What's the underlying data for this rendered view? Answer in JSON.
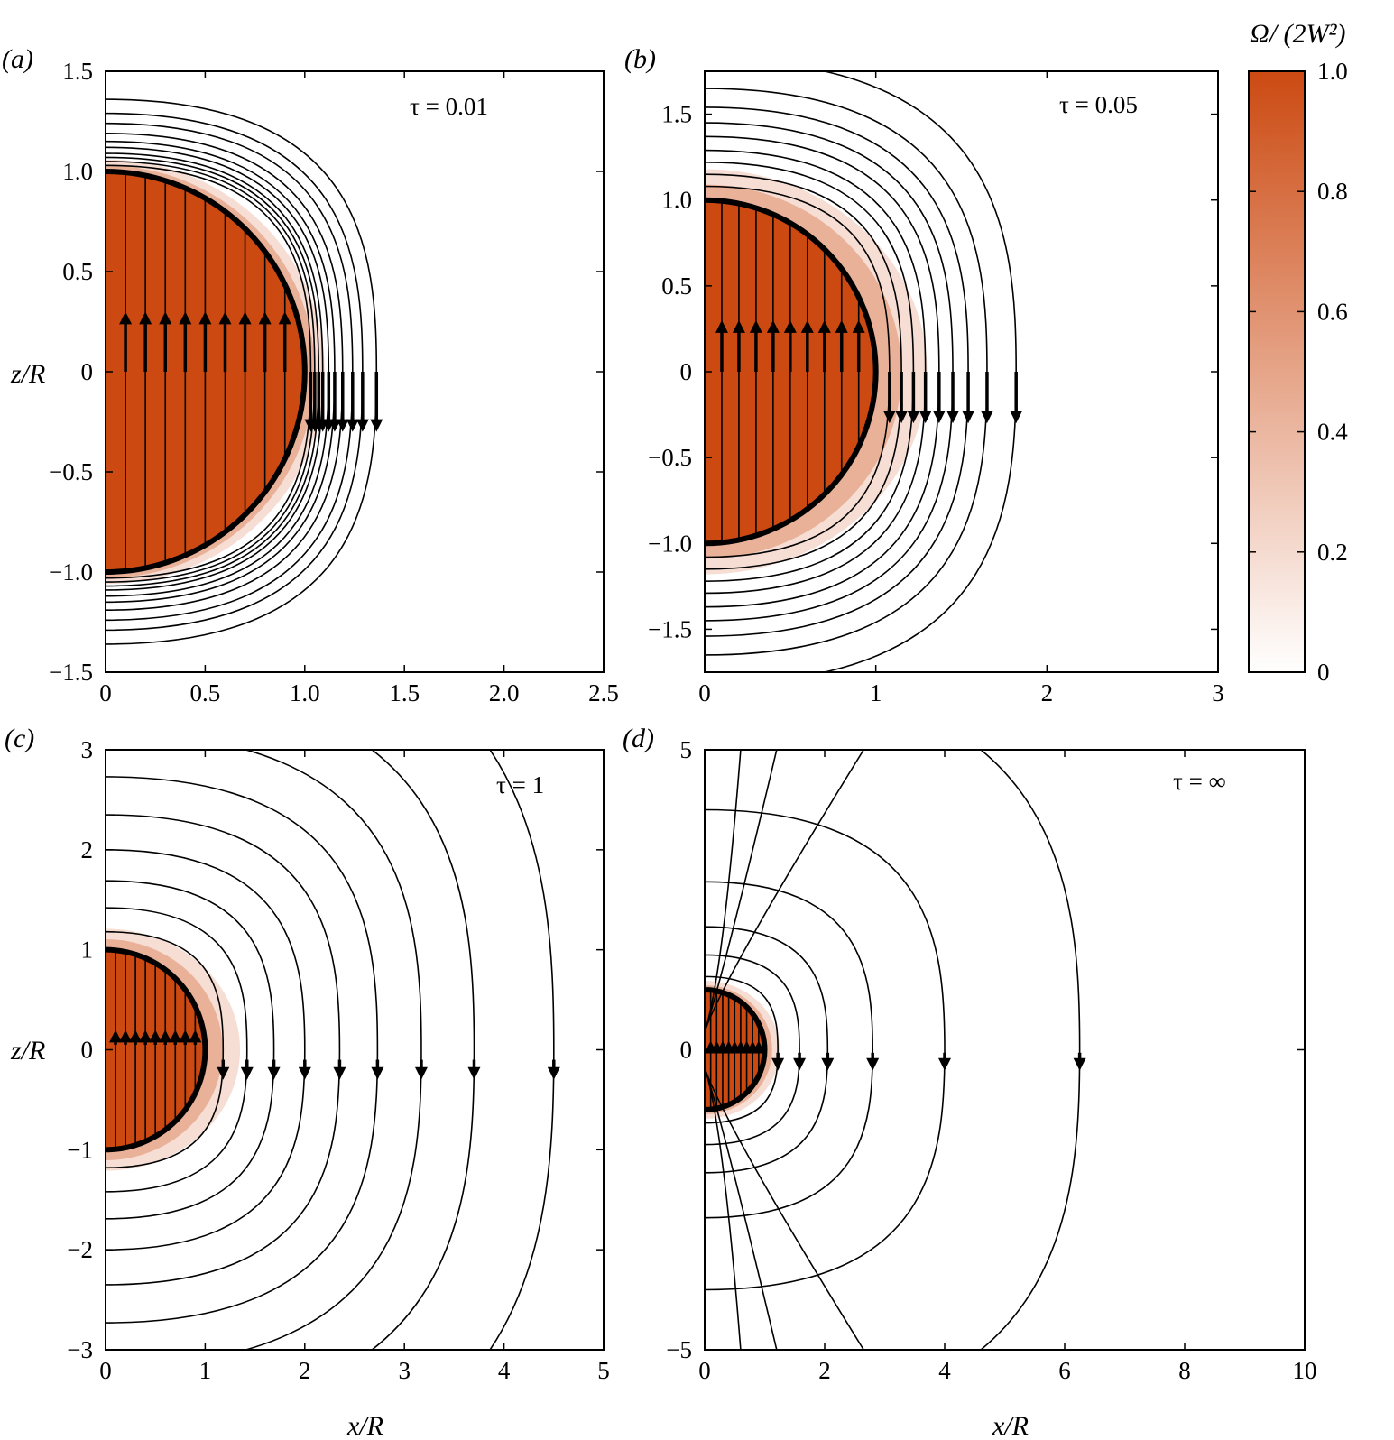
{
  "colorbar": {
    "title": "Ω/ (2W²)",
    "min": 0,
    "max": 1,
    "ticks": [
      "0",
      "0.2",
      "0.4",
      "0.6",
      "0.8",
      "1.0"
    ],
    "tick_values": [
      0,
      0.2,
      0.4,
      0.6,
      0.8,
      1.0
    ],
    "color_high": "#cc4a12",
    "color_low": "#ffffff"
  },
  "line_color": "#000000",
  "chart_data": [
    {
      "panel": "(a)",
      "type": "streamlines over filled contour",
      "annotation": "τ = 0.01",
      "tau": 0.01,
      "xlabel": "",
      "ylabel": "z/R",
      "xlim": [
        0,
        2.5
      ],
      "ylim": [
        -1.5,
        1.5
      ],
      "xticks": [
        0,
        0.5,
        1.0,
        1.5,
        2.0,
        2.5
      ],
      "xtick_labels": [
        "0",
        "0.5",
        "1.0",
        "1.5",
        "2.0",
        "2.5"
      ],
      "yticks": [
        -1.5,
        -1.0,
        -0.5,
        0,
        0.5,
        1.0,
        1.5
      ],
      "ytick_labels": [
        "−1.5",
        "−1.0",
        "−0.5",
        "0",
        "0.5",
        "1.0",
        "1.5"
      ],
      "sphere_radius": 1.0,
      "streamline_inner_x": [
        0.1,
        0.2,
        0.3,
        0.4,
        0.5,
        0.6,
        0.7,
        0.8,
        0.9
      ],
      "streamline_outer_x": [
        1.03,
        1.05,
        1.07,
        1.09,
        1.12,
        1.15,
        1.19,
        1.24,
        1.29,
        1.36
      ],
      "up_arrow_y": [
        0,
        0.3
      ],
      "down_arrow_y": [
        0,
        -0.3
      ]
    },
    {
      "panel": "(b)",
      "type": "streamlines over filled contour",
      "annotation": "τ = 0.05",
      "tau": 0.05,
      "xlabel": "",
      "ylabel": "",
      "xlim": [
        0,
        3
      ],
      "ylim": [
        -1.75,
        1.75
      ],
      "xticks": [
        0,
        1,
        2,
        3
      ],
      "xtick_labels": [
        "0",
        "1",
        "2",
        "3"
      ],
      "yticks": [
        -1.5,
        -1.0,
        -0.5,
        0,
        0.5,
        1.0,
        1.5
      ],
      "ytick_labels": [
        "−1.5",
        "−1.0",
        "−0.5",
        "0",
        "0.5",
        "1.0",
        "1.5"
      ],
      "sphere_radius": 1.0,
      "streamline_inner_x": [
        0.1,
        0.2,
        0.3,
        0.4,
        0.5,
        0.6,
        0.7,
        0.8,
        0.9
      ],
      "streamline_outer_x": [
        1.08,
        1.15,
        1.22,
        1.29,
        1.37,
        1.45,
        1.54,
        1.65,
        1.82
      ],
      "up_arrow_y": [
        0,
        0.3
      ],
      "down_arrow_y": [
        0,
        -0.3
      ]
    },
    {
      "panel": "(c)",
      "type": "streamlines over filled contour",
      "annotation": "τ = 1",
      "tau": 1,
      "xlabel": "x/R",
      "ylabel": "z/R",
      "xlim": [
        0,
        5
      ],
      "ylim": [
        -3,
        3
      ],
      "xticks": [
        0,
        1,
        2,
        3,
        4,
        5
      ],
      "xtick_labels": [
        "0",
        "1",
        "2",
        "3",
        "4",
        "5"
      ],
      "yticks": [
        -3,
        -2,
        -1,
        0,
        1,
        2,
        3
      ],
      "ytick_labels": [
        "−3",
        "−2",
        "−1",
        "0",
        "1",
        "2",
        "3"
      ],
      "sphere_radius": 1.0,
      "streamline_inner_x": [
        0.1,
        0.2,
        0.3,
        0.4,
        0.5,
        0.6,
        0.7,
        0.8,
        0.9
      ],
      "streamline_outer_x": [
        1.18,
        1.42,
        1.69,
        2.0,
        2.35,
        2.73,
        3.17,
        3.7,
        4.5
      ],
      "up_arrow_y": [
        0.05,
        0.2
      ],
      "down_arrow_y": [
        -0.1,
        -0.3
      ]
    },
    {
      "panel": "(d)",
      "type": "streamlines over filled contour",
      "annotation": "τ = ∞",
      "tau": "∞",
      "xlabel": "x/R",
      "ylabel": "",
      "xlim": [
        0,
        10
      ],
      "ylim": [
        -5,
        5
      ],
      "xticks": [
        0,
        2,
        4,
        6,
        8,
        10
      ],
      "xtick_labels": [
        "0",
        "2",
        "4",
        "6",
        "8",
        "10"
      ],
      "yticks": [
        -5,
        0,
        5
      ],
      "ytick_labels": [
        "−5",
        "0",
        "5"
      ],
      "sphere_radius": 1.0,
      "streamline_inner_x": [
        0.1,
        0.2,
        0.3,
        0.4,
        0.5,
        0.6,
        0.7,
        0.8,
        0.9
      ],
      "streamline_outer_x": [
        1.22,
        1.58,
        2.05,
        2.8,
        4.0,
        6.25
      ],
      "streamline_open_x_top": [
        0.6,
        1.2,
        2.65
      ],
      "up_arrow_y": [
        0.0,
        0.15
      ],
      "down_arrow_y": [
        -0.05,
        -0.35
      ]
    }
  ]
}
